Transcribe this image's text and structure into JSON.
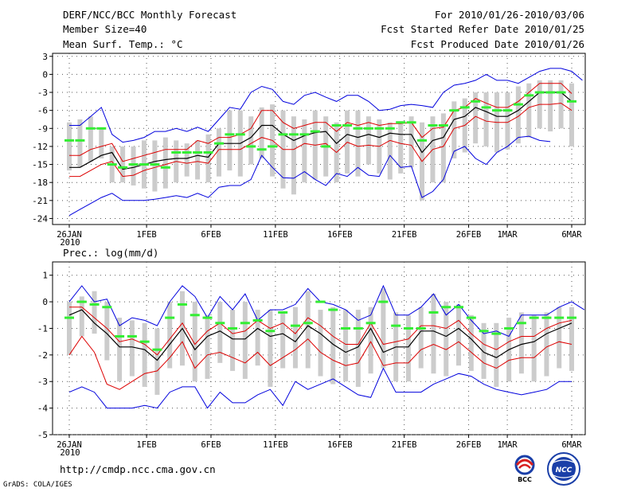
{
  "header": {
    "left_line1": "DERF/NCC/BCC Monthly Forecast",
    "left_line2": "Member Size=40",
    "right_line1": "For 2010/01/26-2010/03/06",
    "right_line2": "Fcst Started Refer Date 2010/01/25",
    "right_line3": "Fcst Produced Date 2010/01/26"
  },
  "footer": {
    "url": "http://cmdp.ncc.cma.gov.cn",
    "credit": "GrADS: COLA/IGES"
  },
  "logos": {
    "bcc": "BCC",
    "ncc": "NCC"
  },
  "colors": {
    "box": "#cccccc",
    "green": "#33ee33",
    "red": "#dd0000",
    "blue": "#0000dd",
    "black": "#000000",
    "grid": "#555555"
  },
  "chart_data": [
    {
      "type": "line",
      "title": "Mean Surf. Temp.: °C",
      "x_tick_labels": [
        "26JAN",
        "1FEB",
        "6FEB",
        "11FEB",
        "16FEB",
        "21FEB",
        "26FEB",
        "1MAR",
        "6MAR"
      ],
      "x_tick_days": [
        0,
        6,
        11,
        16,
        21,
        26,
        31,
        34,
        39
      ],
      "x_sublabel": "2010",
      "ylim": [
        -25,
        3.5
      ],
      "y_ticks": [
        3,
        0,
        -3,
        -6,
        -9,
        -12,
        -15,
        -18,
        -21,
        -24
      ],
      "series": [
        {
          "name": "ensemble-max",
          "color": "blue",
          "values": [
            -23.5,
            -22.5,
            -21.5,
            -20.5,
            -19.8,
            -21,
            -21,
            -21,
            -20.8,
            -20.5,
            -20.2,
            -20.5,
            -19.8,
            -20.5,
            -18.8,
            -18.5,
            -18.5,
            -17.5,
            -13.5,
            -15.5,
            -17.2,
            -17.3,
            -16.2,
            -17.5,
            -18.5,
            -16.5,
            -17,
            -15.5,
            -16.8,
            -17,
            -13.5,
            -15.5,
            -15.3,
            -20.5,
            -19.5,
            -17.5,
            -12.8,
            -12,
            -14,
            -15,
            -13,
            -12,
            -10.5,
            -10.3,
            -11,
            -11.2
          ]
        },
        {
          "name": "upper-red",
          "color": "red",
          "values": [
            -17,
            -17,
            -16,
            -15,
            -14.5,
            -17,
            -16.8,
            -16,
            -15.5,
            -15,
            -14.5,
            -14.8,
            -14.5,
            -14.8,
            -12.5,
            -12.5,
            -12.5,
            -11.5,
            -10.5,
            -11,
            -12.5,
            -12.5,
            -11.5,
            -11.8,
            -11.5,
            -13,
            -11.3,
            -12,
            -11.8,
            -12,
            -11,
            -11.5,
            -11.8,
            -14.5,
            -12.5,
            -12,
            -9,
            -8.5,
            -7,
            -7.8,
            -8,
            -8,
            -7,
            -5.5,
            -5,
            -5,
            -4.8,
            -6
          ]
        },
        {
          "name": "ensemble-mean",
          "color": "black",
          "values": [
            -15.5,
            -15.5,
            -14.5,
            -13.5,
            -13,
            -15.8,
            -15.5,
            -15,
            -14.5,
            -14.2,
            -14,
            -14,
            -13.5,
            -13.8,
            -11.5,
            -11.5,
            -11.5,
            -10.5,
            -8.5,
            -8.5,
            -10,
            -11,
            -10.2,
            -9.7,
            -9.5,
            -11.5,
            -10,
            -10.5,
            -10,
            -10.5,
            -9.8,
            -10,
            -10,
            -13,
            -11,
            -10.5,
            -7.5,
            -7,
            -5.5,
            -6.2,
            -7,
            -7,
            -6,
            -4.5,
            -3,
            -3,
            -3,
            -4.5
          ]
        },
        {
          "name": "lower-red",
          "color": "red",
          "values": [
            -13.5,
            -13.5,
            -12.5,
            -12,
            -11.5,
            -14.5,
            -14,
            -13.5,
            -13,
            -12.5,
            -12.5,
            -12.5,
            -11,
            -11.5,
            -10.5,
            -10.5,
            -10,
            -9,
            -6,
            -6,
            -8,
            -9,
            -8.5,
            -8,
            -8,
            -9.5,
            -8,
            -8.5,
            -8,
            -8.5,
            -8.2,
            -8.2,
            -8,
            -10.5,
            -9,
            -8.8,
            -6,
            -5.5,
            -4,
            -4.8,
            -5.5,
            -5.5,
            -4.5,
            -3,
            -1.5,
            -1.5,
            -1.5,
            -3.2
          ]
        },
        {
          "name": "ensemble-min",
          "color": "blue",
          "values": [
            -8.5,
            -8.5,
            -7,
            -5.5,
            -10,
            -11.3,
            -11,
            -10.5,
            -9.5,
            -9.5,
            -9,
            -9.5,
            -8.8,
            -9.5,
            -7.5,
            -5.5,
            -5.8,
            -3,
            -2,
            -2.5,
            -4.5,
            -5,
            -3.5,
            -3,
            -3.8,
            -4.5,
            -3.5,
            -3.5,
            -4.5,
            -6,
            -5.8,
            -5.2,
            -5,
            -5.2,
            -5.5,
            -3,
            -1.8,
            -1.5,
            -1,
            0,
            -1,
            -1,
            -1.5,
            -0.5,
            0.5,
            1,
            1,
            0.5,
            -1
          ]
        },
        {
          "name": "box-top",
          "color": "box",
          "values": [
            -8,
            -7.5,
            -7,
            -9,
            -12,
            -12,
            -12,
            -11,
            -11,
            -10.5,
            -11,
            -11.5,
            -11,
            -10,
            -9,
            -6,
            -6,
            -7,
            -5.5,
            -5,
            -6,
            -7,
            -7.5,
            -6,
            -7,
            -8,
            -6,
            -6,
            -7,
            -7.5,
            -8,
            -8,
            -7,
            -8,
            -7,
            -6.5,
            -4.5,
            -4,
            -3,
            -3,
            -3,
            -3,
            -2,
            -1.5,
            -1,
            -1,
            -1,
            -1.5
          ]
        },
        {
          "name": "box-bottom",
          "color": "box",
          "values": [
            -16,
            -15.5,
            -14.5,
            -14,
            -18,
            -18,
            -18.5,
            -19,
            -19.5,
            -19,
            -18,
            -17,
            -17.5,
            -18,
            -17,
            -16,
            -17,
            -15,
            -14,
            -17,
            -19,
            -20,
            -18,
            -17.5,
            -17,
            -18,
            -16.5,
            -17,
            -15,
            -16.5,
            -17.5,
            -16.5,
            -15.5,
            -21,
            -18,
            -18,
            -14,
            -13,
            -11.5,
            -12,
            -13,
            -12.5,
            -11.5,
            -10.5,
            -9,
            -9.5,
            -9,
            -12
          ]
        },
        {
          "name": "green-median",
          "color": "green",
          "values": [
            -11,
            -11,
            -9,
            -9,
            -15,
            -15.5,
            -15,
            -15,
            -15,
            -15.5,
            -13,
            -13,
            -13,
            -13,
            -11.5,
            -10,
            -10,
            -12,
            -12.5,
            -12,
            -10,
            -10,
            -10,
            -9.5,
            -12,
            -8.5,
            -8.5,
            -9,
            -9,
            -9,
            -9,
            -8,
            -8,
            -11,
            -8.5,
            -8.5,
            -6,
            -5.5,
            -4.5,
            -5.5,
            -6,
            -6,
            -5,
            -3.5,
            -3,
            -3,
            -3,
            -4.5
          ]
        }
      ]
    },
    {
      "type": "line",
      "title": "Prec.: log(mm/d)",
      "x_tick_labels": [
        "26JAN",
        "1FEB",
        "6FEB",
        "11FEB",
        "16FEB",
        "21FEB",
        "26FEB",
        "1MAR",
        "6MAR"
      ],
      "x_tick_days": [
        0,
        6,
        11,
        16,
        21,
        26,
        31,
        34,
        39
      ],
      "x_sublabel": "2010",
      "ylim": [
        -5,
        1.5
      ],
      "y_ticks": [
        1,
        0,
        -1,
        -2,
        -3,
        -4,
        -5
      ],
      "series": [
        {
          "name": "ensemble-max",
          "color": "blue",
          "values": [
            0,
            0.6,
            0,
            0.1,
            -0.9,
            -0.6,
            -0.7,
            -0.9,
            0,
            0.6,
            0.2,
            -0.6,
            0.2,
            -0.3,
            0.3,
            -0.7,
            -0.3,
            -0.3,
            -0.1,
            0.5,
            0,
            -0.1,
            -0.3,
            -0.7,
            -0.5,
            0.6,
            -0.5,
            -0.5,
            -0.2,
            0.3,
            -0.5,
            -0.1,
            -0.7,
            -1.2,
            -1.1,
            -1.3,
            -0.5,
            -0.5,
            -0.5,
            -0.2,
            0,
            -0.3
          ]
        },
        {
          "name": "upper-red",
          "color": "red",
          "values": [
            -0.2,
            -0.2,
            -0.6,
            -1,
            -1.5,
            -1.4,
            -1.6,
            -2,
            -1.4,
            -0.8,
            -1.6,
            -1.1,
            -0.8,
            -1.2,
            -1.1,
            -0.7,
            -1,
            -0.8,
            -1.2,
            -0.6,
            -0.9,
            -1.3,
            -1.6,
            -1.6,
            -0.8,
            -1.6,
            -1.5,
            -1.4,
            -0.9,
            -0.9,
            -1,
            -0.7,
            -1.2,
            -1.6,
            -1.8,
            -1.5,
            -1.3,
            -1.3,
            -1,
            -0.8,
            -0.7
          ]
        },
        {
          "name": "ensemble-mean",
          "color": "black",
          "values": [
            -0.5,
            -0.3,
            -0.8,
            -1.2,
            -1.7,
            -1.7,
            -1.8,
            -2.2,
            -1.6,
            -1,
            -1.8,
            -1.3,
            -1.1,
            -1.4,
            -1.4,
            -1,
            -1.3,
            -1.2,
            -1.5,
            -0.9,
            -1.2,
            -1.6,
            -1.9,
            -1.7,
            -1,
            -1.9,
            -1.7,
            -1.7,
            -1.1,
            -1.1,
            -1.3,
            -1,
            -1.4,
            -1.9,
            -2.1,
            -1.8,
            -1.6,
            -1.5,
            -1.2,
            -1,
            -0.8
          ]
        },
        {
          "name": "lower-red",
          "color": "red",
          "values": [
            -2,
            -1.3,
            -1.9,
            -3.1,
            -3.3,
            -3,
            -2.7,
            -2.6,
            -2.1,
            -1.5,
            -2.5,
            -2,
            -1.9,
            -2.1,
            -2.3,
            -1.9,
            -2.4,
            -2.1,
            -1.8,
            -1.4,
            -1.9,
            -2.2,
            -2.4,
            -2.3,
            -1.5,
            -2.4,
            -2.3,
            -2.3,
            -1.8,
            -1.6,
            -1.8,
            -1.5,
            -1.9,
            -2.3,
            -2.5,
            -2.2,
            -2.1,
            -2.1,
            -1.7,
            -1.5,
            -1.6
          ]
        },
        {
          "name": "ensemble-min",
          "color": "blue",
          "values": [
            -3.4,
            -3.2,
            -3.4,
            -4,
            -4,
            -4,
            -3.9,
            -4,
            -3.4,
            -3.2,
            -3.2,
            -4,
            -3.4,
            -3.8,
            -3.8,
            -3.5,
            -3.3,
            -3.9,
            -3,
            -3.3,
            -3.1,
            -2.9,
            -3.2,
            -3.5,
            -3.6,
            -2.5,
            -3.4,
            -3.4,
            -3.4,
            -3.1,
            -2.9,
            -2.7,
            -2.8,
            -3.1,
            -3.3,
            -3.4,
            -3.5,
            -3.4,
            -3.3,
            -3,
            -3
          ]
        },
        {
          "name": "box-top",
          "color": "box",
          "values": [
            0,
            0.2,
            0.4,
            0,
            -0.6,
            -0.7,
            -0.8,
            -1,
            0,
            0.4,
            0,
            -0.5,
            0,
            -0.3,
            0,
            -0.3,
            -0.3,
            -0.4,
            -0.2,
            0.4,
            -0.3,
            -0.2,
            -0.3,
            -0.3,
            -0.2,
            0.5,
            -0.4,
            -0.5,
            -0.2,
            0.3,
            0,
            -0.1,
            -0.5,
            -0.8,
            -0.8,
            -0.6,
            -0.4,
            -0.5,
            -0.4,
            -0.2,
            -0.2
          ]
        },
        {
          "name": "box-bottom",
          "color": "box",
          "values": [
            -2,
            -1.3,
            -1.2,
            -2.2,
            -3,
            -2.8,
            -3.2,
            -3.5,
            -2.5,
            -2.4,
            -3,
            -2.9,
            -2.3,
            -2.6,
            -2.9,
            -2.4,
            -3.2,
            -2.5,
            -2.5,
            -2.5,
            -2.8,
            -3.1,
            -3,
            -3.2,
            -2.7,
            -2.5,
            -3,
            -3,
            -2.5,
            -2.7,
            -2.8,
            -2.4,
            -2.6,
            -2.9,
            -3.2,
            -3,
            -2.7,
            -3,
            -2.8,
            -2.5,
            -2.6
          ]
        },
        {
          "name": "green-median",
          "color": "green",
          "values": [
            -0.6,
            0,
            -0.1,
            -0.2,
            -1.3,
            -1.3,
            -1.5,
            -1.8,
            -0.6,
            -0.1,
            -0.5,
            -0.6,
            -0.8,
            -1,
            -0.8,
            -0.7,
            -1.1,
            -0.4,
            -0.9,
            -0.8,
            0,
            -0.3,
            -1,
            -1,
            -0.8,
            0,
            -0.9,
            -1,
            -1,
            -0.4,
            -0.2,
            -0.2,
            -0.6,
            -1.1,
            -1.2,
            -1,
            -0.8,
            -0.6,
            -0.6,
            -0.6,
            -0.6
          ]
        }
      ]
    }
  ]
}
